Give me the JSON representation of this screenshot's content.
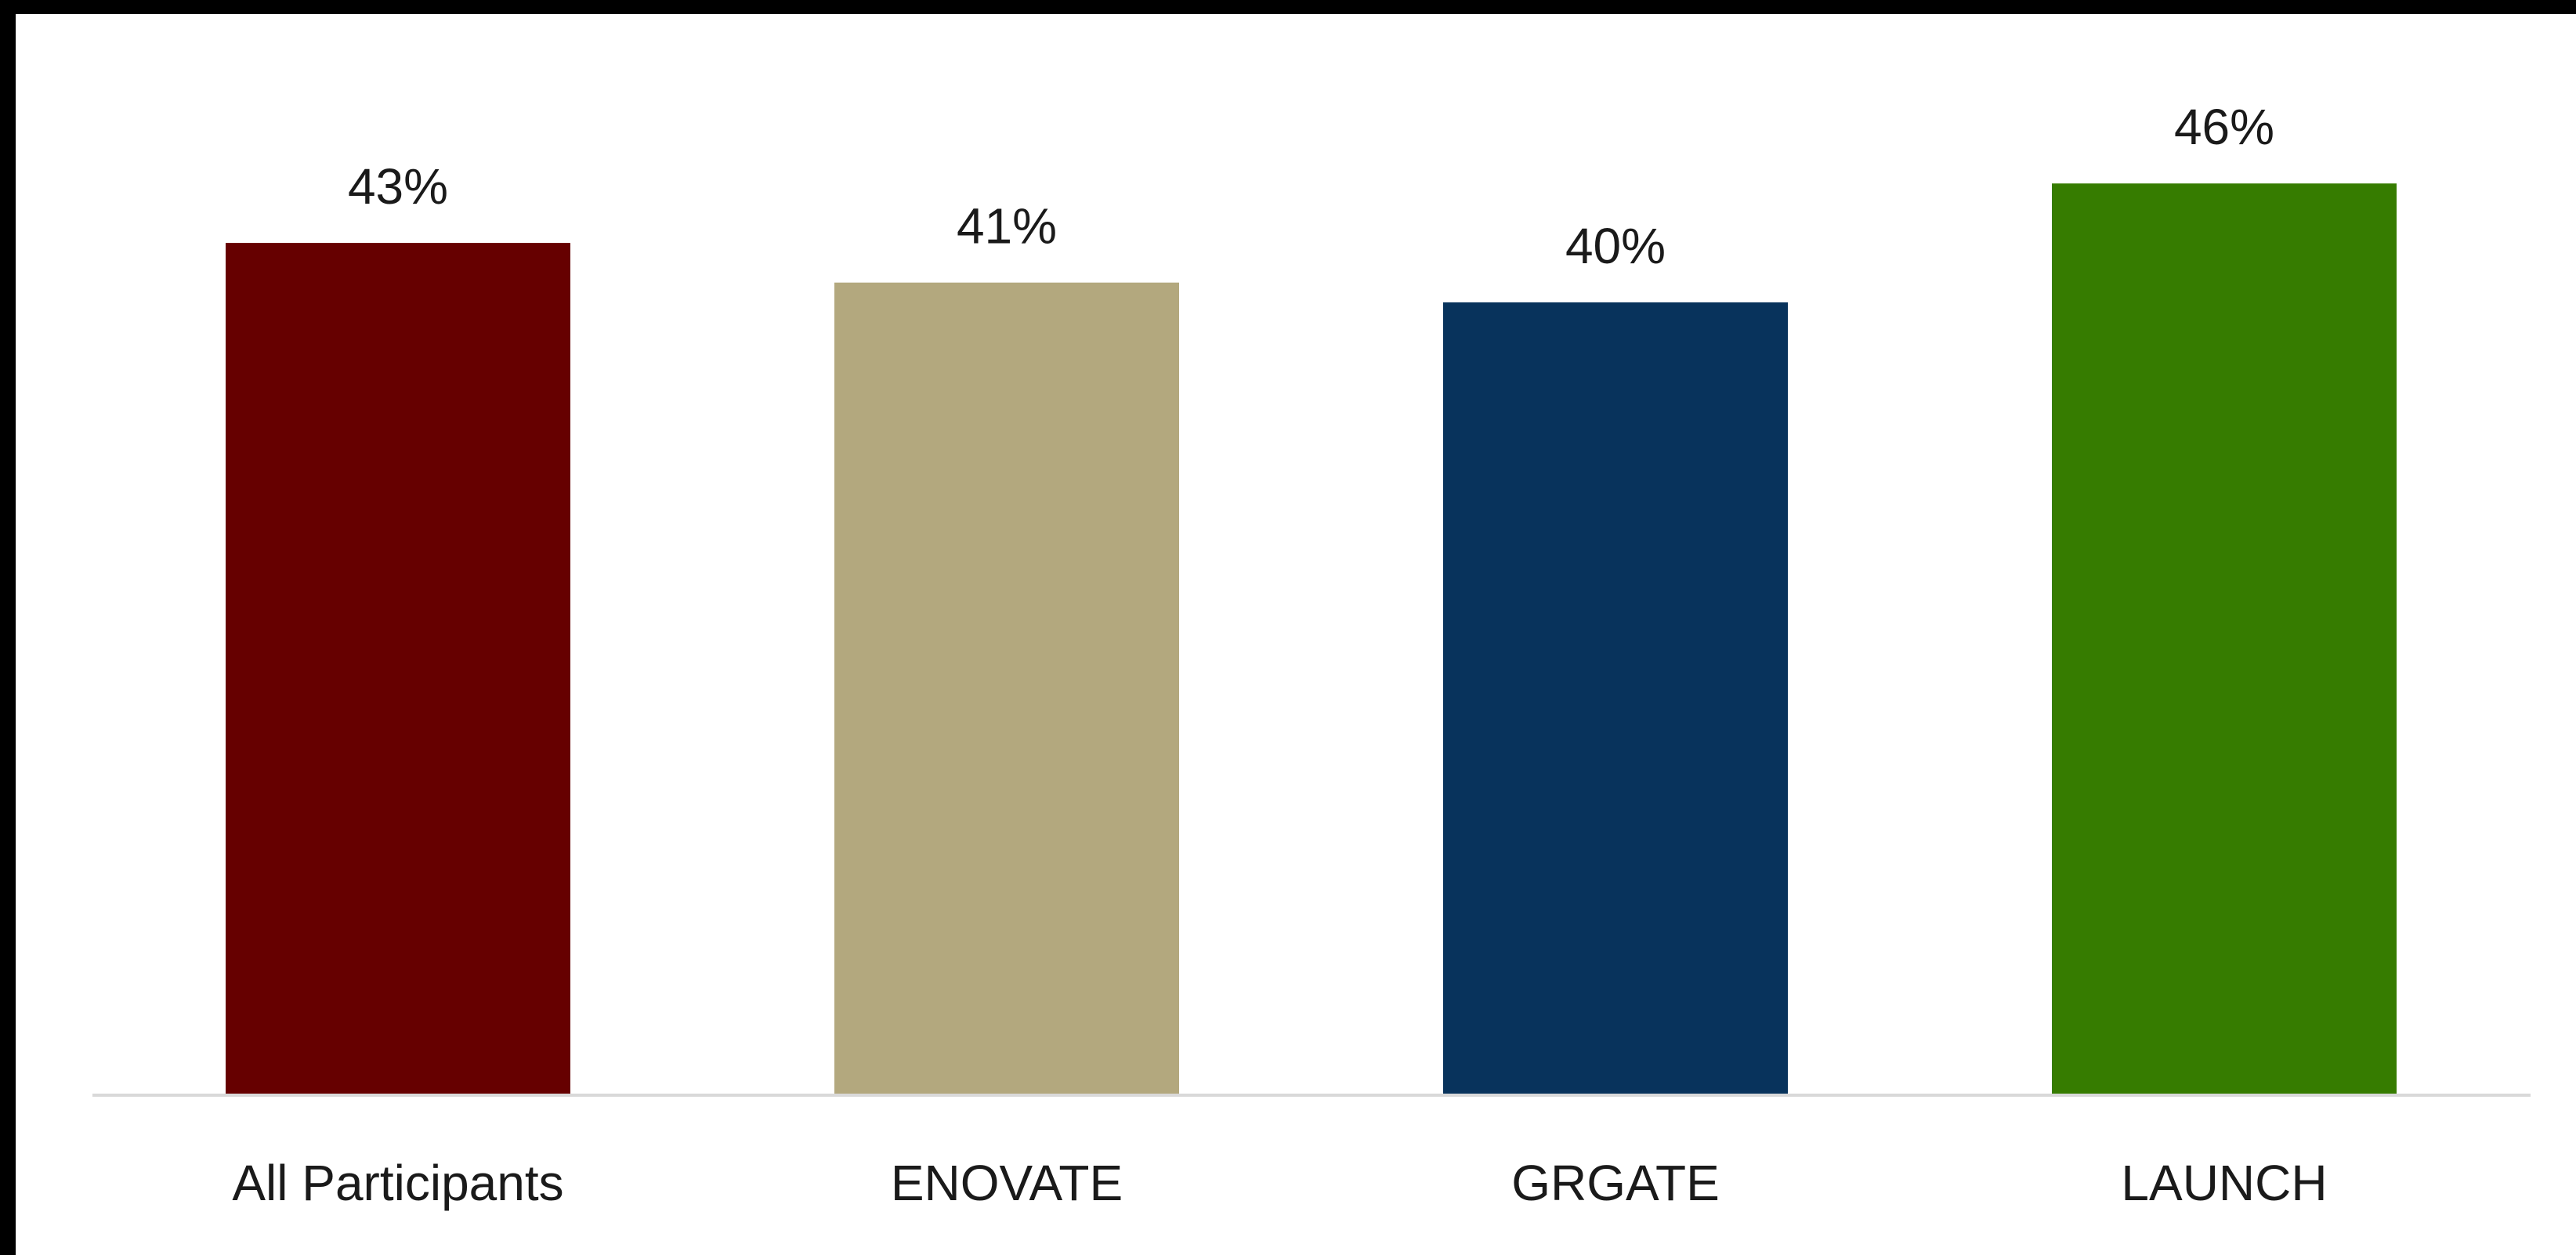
{
  "chart_data": {
    "type": "bar",
    "categories": [
      "All Participants",
      "ENOVATE",
      "GRGATE",
      "LAUNCH"
    ],
    "values": [
      43,
      41,
      40,
      46
    ],
    "value_labels": [
      "43%",
      "41%",
      "40%",
      "46%"
    ],
    "colors": [
      "#660000",
      "#B3A87E",
      "#08335C",
      "#367C00"
    ],
    "title": "",
    "xlabel": "",
    "ylabel": "",
    "ylim": [
      0,
      50
    ],
    "grid": false,
    "legend": "none",
    "baseline_color": "#D9D9D9"
  }
}
